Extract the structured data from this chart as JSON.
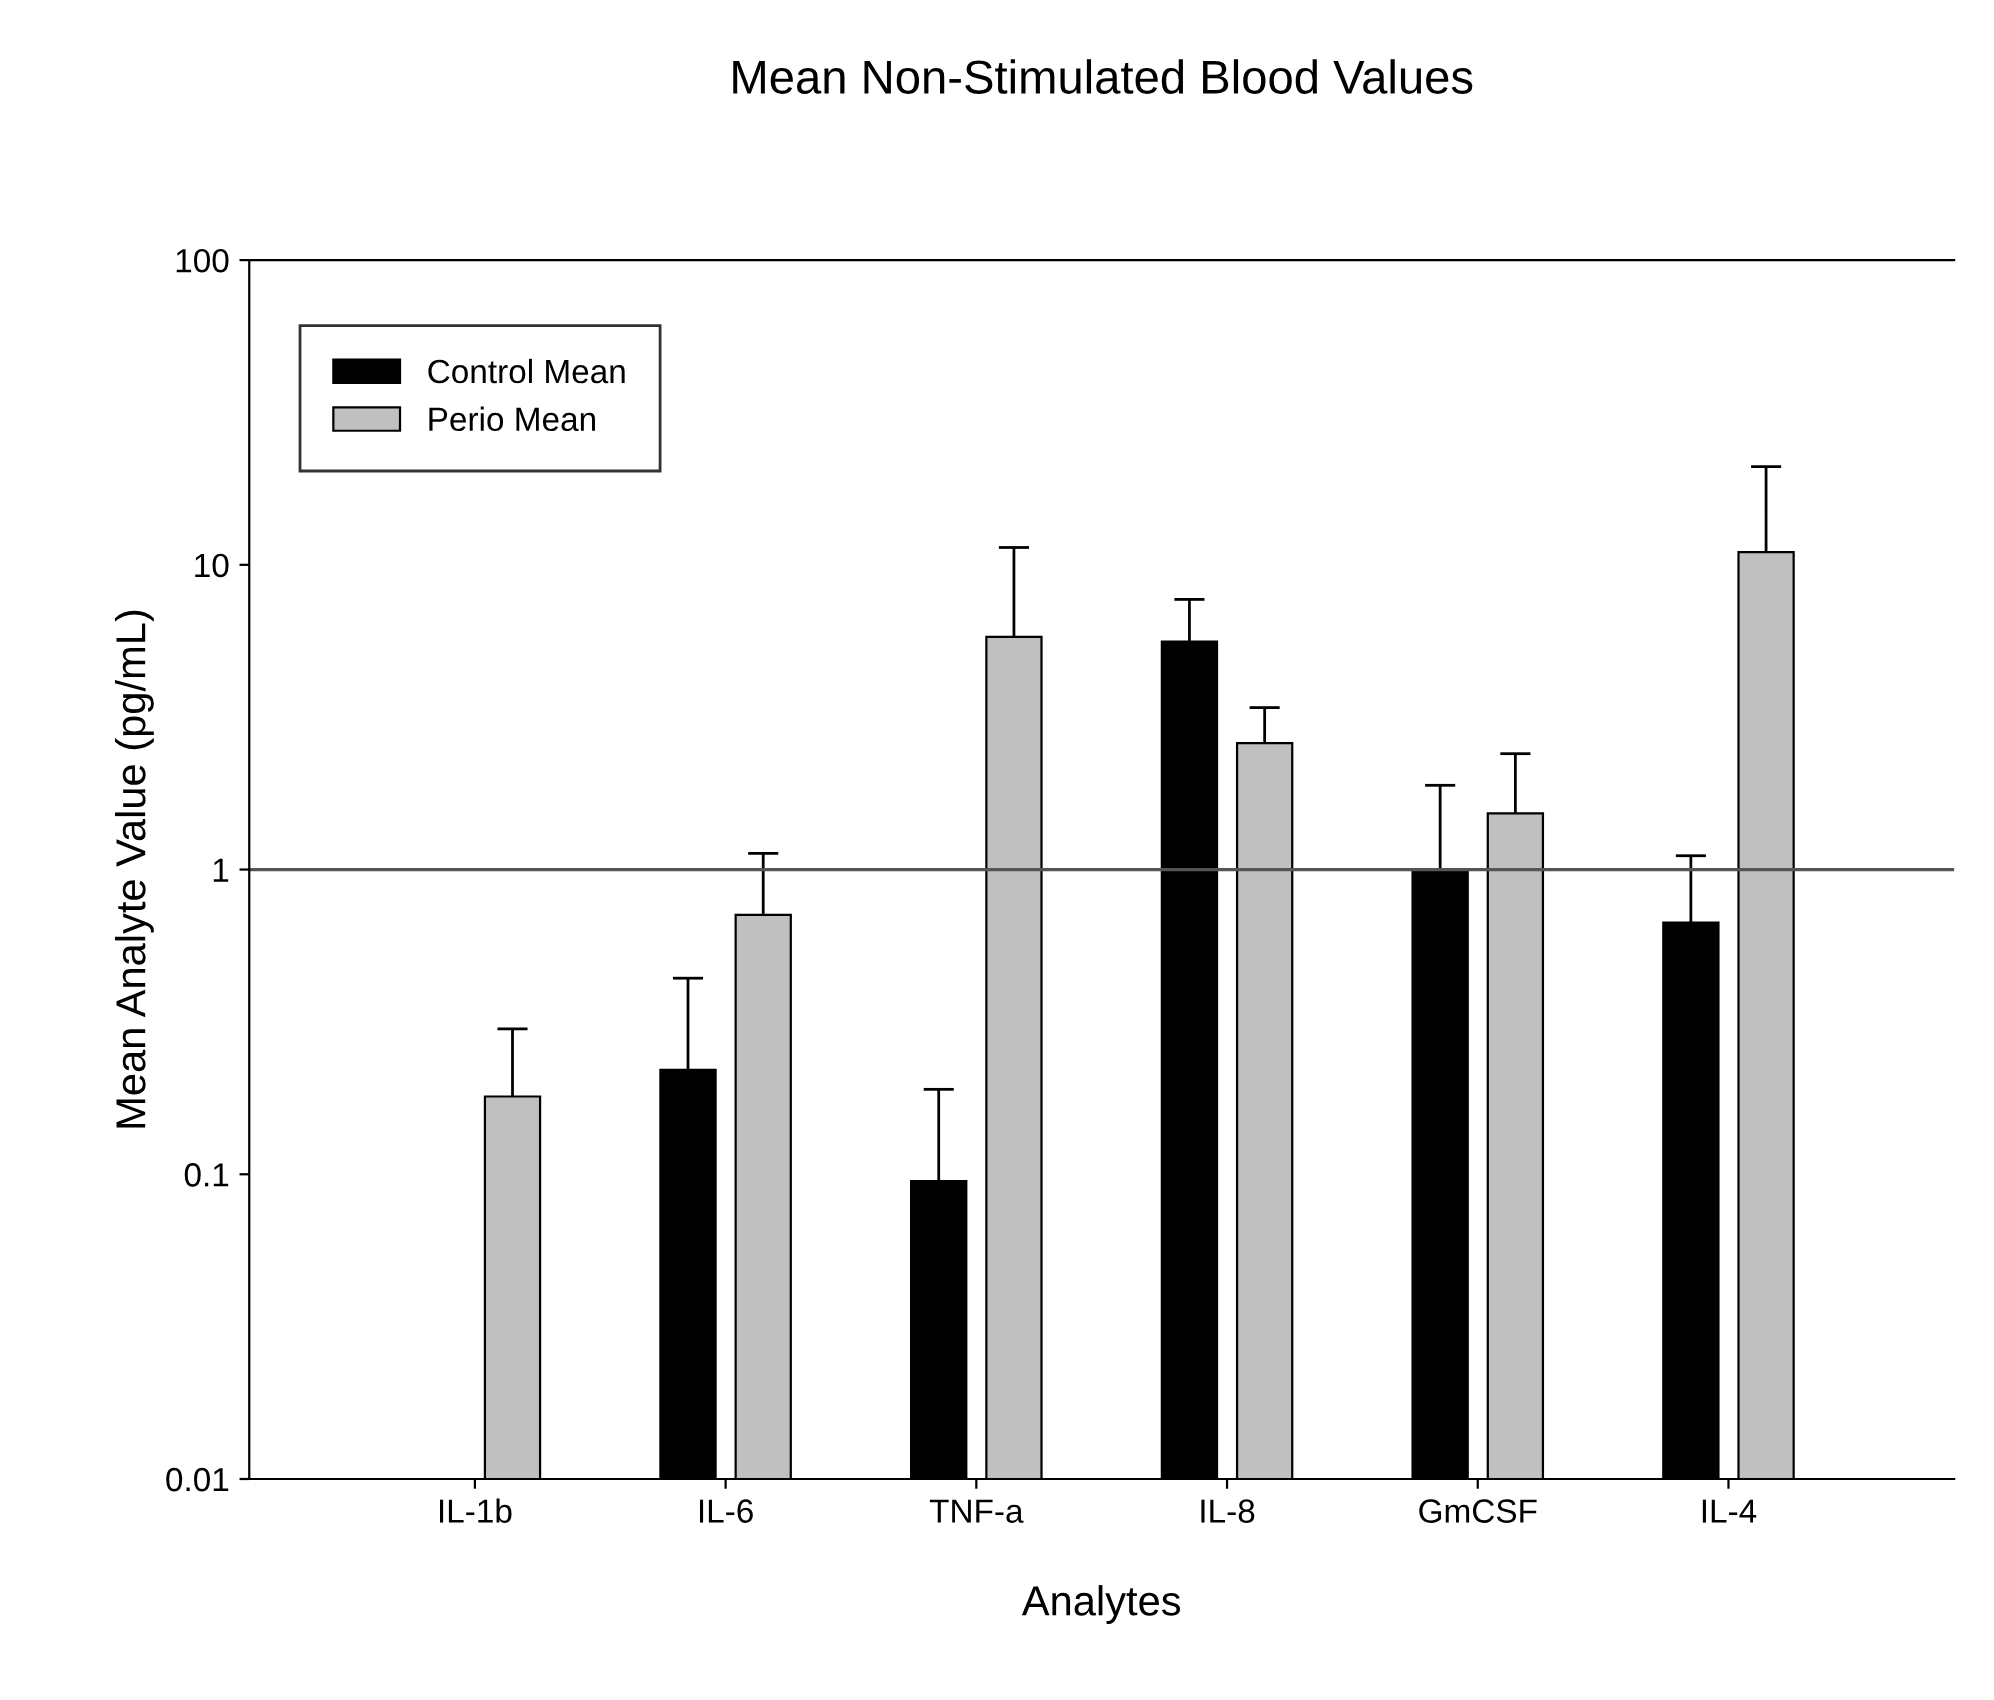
{
  "chart_data": {
    "type": "bar",
    "title": "Mean Non-Stimulated Blood Values",
    "xlabel": "Analytes",
    "ylabel": "Mean Analyte Value (pg/mL)",
    "categories": [
      "IL-1b",
      "IL-6",
      "TNF-a",
      "IL-8",
      "GmCSF",
      "IL-4"
    ],
    "series": [
      {
        "name": "Control Mean",
        "color": "#000000",
        "values": [
          null,
          0.22,
          0.095,
          5.6,
          0.98,
          0.67
        ],
        "errors": [
          null,
          [
            0.22,
            0.44
          ],
          [
            0.095,
            0.19
          ],
          [
            5.6,
            7.7
          ],
          [
            0.98,
            1.89
          ],
          [
            0.67,
            1.11
          ]
        ]
      },
      {
        "name": "Perio Mean",
        "color": "#c0c0c0",
        "values": [
          0.18,
          0.71,
          5.8,
          2.6,
          1.53,
          11.0
        ],
        "errors": [
          [
            0.18,
            0.3
          ],
          [
            0.71,
            1.13
          ],
          [
            5.8,
            11.4
          ],
          [
            2.6,
            3.4
          ],
          [
            1.53,
            2.4
          ],
          [
            11.0,
            21
          ]
        ]
      }
    ],
    "log": "y",
    "ylim": [
      0.01,
      100
    ],
    "yticks": [
      0.01,
      0.1,
      1,
      10,
      100
    ],
    "ref_lines": [
      {
        "axis": "y",
        "value": 1,
        "color": "#555555"
      }
    ],
    "legend": "top left",
    "grid": false
  }
}
